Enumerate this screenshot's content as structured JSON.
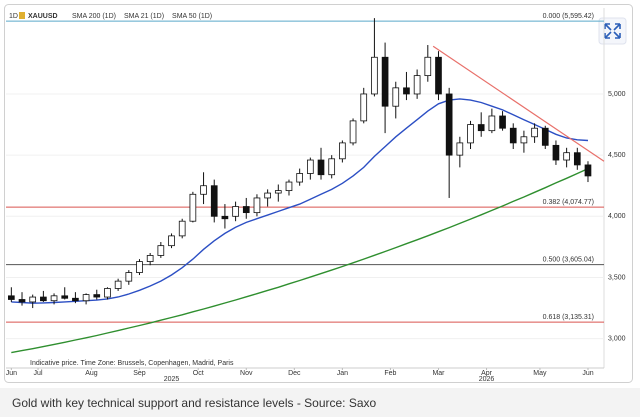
{
  "chart_data": {
    "type": "candlestick",
    "interval": "1D",
    "symbol": "XAUUSD",
    "note": "Indicative price. Time Zone: Brussels, Copenhagen, Madrid, Paris",
    "caption": "Gold with key technical support and resistance levels - Source: Saxo",
    "up_color": "#ffffff",
    "down_color": "#111111",
    "candles": [
      [
        3350,
        3420,
        3300,
        3320
      ],
      [
        3320,
        3380,
        3270,
        3300
      ],
      [
        3300,
        3360,
        3250,
        3340
      ],
      [
        3340,
        3390,
        3300,
        3310
      ],
      [
        3310,
        3370,
        3280,
        3350
      ],
      [
        3350,
        3420,
        3320,
        3330
      ],
      [
        3330,
        3380,
        3290,
        3310
      ],
      [
        3310,
        3370,
        3280,
        3360
      ],
      [
        3360,
        3400,
        3320,
        3340
      ],
      [
        3340,
        3420,
        3320,
        3410
      ],
      [
        3410,
        3490,
        3390,
        3470
      ],
      [
        3470,
        3560,
        3440,
        3540
      ],
      [
        3540,
        3650,
        3520,
        3630
      ],
      [
        3630,
        3700,
        3600,
        3680
      ],
      [
        3680,
        3790,
        3660,
        3760
      ],
      [
        3760,
        3860,
        3740,
        3840
      ],
      [
        3840,
        3980,
        3820,
        3960
      ],
      [
        3960,
        4200,
        3950,
        4180
      ],
      [
        4180,
        4360,
        4100,
        4250
      ],
      [
        4250,
        4300,
        3950,
        4000
      ],
      [
        4000,
        4100,
        3900,
        3980
      ],
      [
        4000,
        4120,
        3960,
        4080
      ],
      [
        4080,
        4150,
        3980,
        4030
      ],
      [
        4030,
        4180,
        4000,
        4150
      ],
      [
        4150,
        4220,
        4080,
        4190
      ],
      [
        4190,
        4260,
        4120,
        4210
      ],
      [
        4210,
        4300,
        4170,
        4280
      ],
      [
        4280,
        4390,
        4250,
        4350
      ],
      [
        4350,
        4480,
        4300,
        4460
      ],
      [
        4460,
        4560,
        4300,
        4340
      ],
      [
        4340,
        4500,
        4310,
        4470
      ],
      [
        4470,
        4620,
        4440,
        4600
      ],
      [
        4600,
        4800,
        4580,
        4780
      ],
      [
        4780,
        5050,
        4760,
        5000
      ],
      [
        5000,
        5620,
        4980,
        5300
      ],
      [
        5300,
        5420,
        4680,
        4900
      ],
      [
        4900,
        5100,
        4800,
        5050
      ],
      [
        5050,
        5180,
        4950,
        5000
      ],
      [
        5000,
        5200,
        4960,
        5150
      ],
      [
        5150,
        5400,
        5100,
        5300
      ],
      [
        5300,
        5350,
        4950,
        5000
      ],
      [
        5000,
        5050,
        4150,
        4500
      ],
      [
        4500,
        4650,
        4400,
        4600
      ],
      [
        4600,
        4780,
        4550,
        4750
      ],
      [
        4750,
        4850,
        4650,
        4700
      ],
      [
        4700,
        4880,
        4680,
        4820
      ],
      [
        4820,
        4860,
        4700,
        4720
      ],
      [
        4720,
        4760,
        4550,
        4600
      ],
      [
        4600,
        4700,
        4520,
        4650
      ],
      [
        4650,
        4760,
        4600,
        4720
      ],
      [
        4720,
        4740,
        4550,
        4580
      ],
      [
        4580,
        4620,
        4420,
        4460
      ],
      [
        4460,
        4560,
        4400,
        4520
      ],
      [
        4520,
        4560,
        4380,
        4420
      ],
      [
        4420,
        4450,
        4280,
        4330
      ]
    ],
    "series": [
      {
        "name": "SMA 200 (1D)",
        "color": "#2f8f2f",
        "values": [
          2886,
          2902,
          2918,
          2935,
          2953,
          2970,
          2989,
          3007,
          3026,
          3046,
          3066,
          3087,
          3107,
          3129,
          3151,
          3173,
          3195,
          3219,
          3242,
          3266,
          3291,
          3316,
          3342,
          3367,
          3394,
          3420,
          3448,
          3475,
          3503,
          3532,
          3560,
          3590,
          3620,
          3650,
          3681,
          3712,
          3744,
          3776,
          3808,
          3841,
          3874,
          3908,
          3942,
          3977,
          4012,
          4048,
          4084,
          4122,
          4158,
          4196,
          4234,
          4273,
          4311,
          4350,
          4390
        ]
      },
      {
        "name": "SMA 50 (1D)",
        "color": "#2c4fc4",
        "values": [
          3300,
          3295,
          3290,
          3292,
          3295,
          3300,
          3305,
          3310,
          3315,
          3325,
          3340,
          3365,
          3395,
          3430,
          3470,
          3520,
          3580,
          3650,
          3730,
          3800,
          3860,
          3910,
          3950,
          3980,
          4010,
          4040,
          4070,
          4100,
          4140,
          4180,
          4220,
          4270,
          4330,
          4400,
          4490,
          4570,
          4650,
          4720,
          4790,
          4860,
          4920,
          4950,
          4960,
          4950,
          4930,
          4900,
          4870,
          4830,
          4790,
          4750,
          4710,
          4670,
          4640,
          4625,
          4620
        ]
      }
    ],
    "legend_extra": {
      "name": "SMA 21 (1D)",
      "color": "#c0504d"
    },
    "levels": [
      {
        "value": 5595.42,
        "label": "0.000 (5,595.42)",
        "color": "#5aa9c9"
      },
      {
        "value": 4074.77,
        "label": "0.382 (4,074.77)",
        "color": "#d9534f"
      },
      {
        "value": 3605.04,
        "label": "0.500 (3,605.04)",
        "color": "#555555"
      },
      {
        "value": 3135.31,
        "label": "0.618 (3,135.31)",
        "color": "#d9534f"
      }
    ],
    "trendline": {
      "x": [
        39.5,
        55.5
      ],
      "y": [
        5390,
        4450
      ],
      "color": "#e8706a"
    },
    "xlim": [
      -0.5,
      55.5
    ],
    "xticks": [
      {
        "value": 0,
        "label": "Jun"
      },
      {
        "value": 2.5,
        "label": "Jul"
      },
      {
        "value": 7.5,
        "label": "Aug"
      },
      {
        "value": 12,
        "label": "Sep"
      },
      {
        "value": 17.5,
        "label": "Oct"
      },
      {
        "value": 22,
        "label": "Nov"
      },
      {
        "value": 26.5,
        "label": "Dec"
      },
      {
        "value": 31,
        "label": "Jan"
      },
      {
        "value": 35.5,
        "label": "Feb"
      },
      {
        "value": 40,
        "label": "Mar"
      },
      {
        "value": 44.5,
        "label": "Apr"
      },
      {
        "value": 49.5,
        "label": "May"
      },
      {
        "value": 54,
        "label": "Jun"
      }
    ],
    "year_labels": [
      {
        "value": 15,
        "label": "2025"
      },
      {
        "value": 44.5,
        "label": "2026"
      }
    ],
    "ylim": [
      2760,
      5670
    ],
    "yticks": [
      {
        "value": 3000,
        "label": "3,000"
      },
      {
        "value": 3500,
        "label": "3,500"
      },
      {
        "value": 4000,
        "label": "4,000"
      },
      {
        "value": 4500,
        "label": "4,500"
      },
      {
        "value": 5000,
        "label": "5,000"
      }
    ],
    "grid": true
  }
}
